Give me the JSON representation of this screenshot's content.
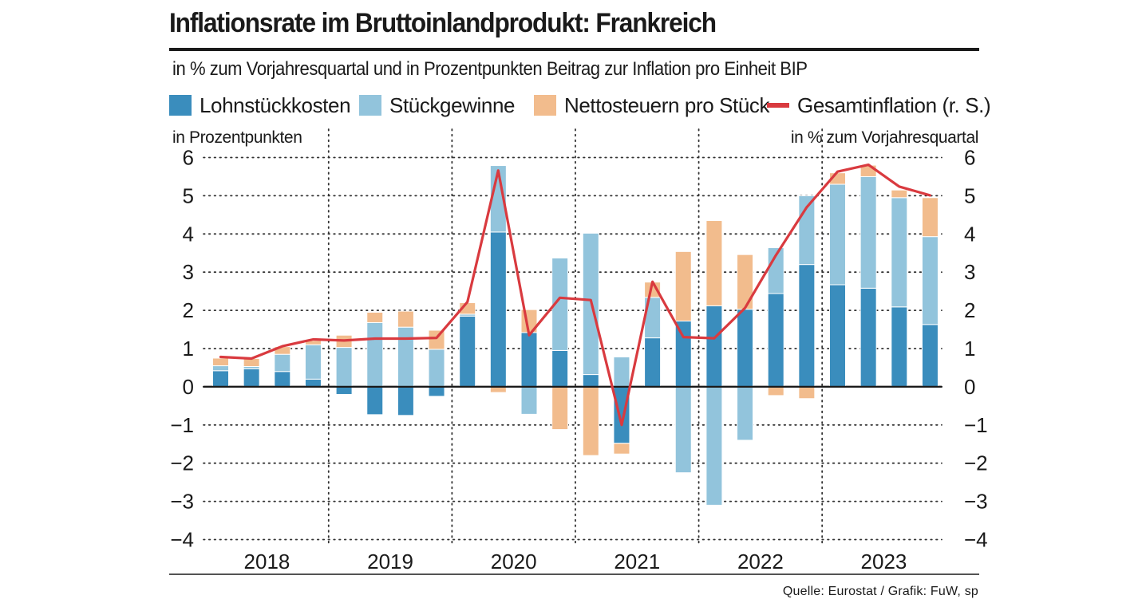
{
  "title": "Inflationsrate im Bruttoinlandprodukt: Frankreich",
  "subtitle": "in % zum Vorjahresquartal und in Prozentpunkten Beitrag zur Inflation pro Einheit BIP",
  "source": "Quelle: Eurostat / Grafik: FuW, sp",
  "colors": {
    "lohn": "#3a8dbd",
    "gewinne": "#92c4dc",
    "steuern": "#f2bc8d",
    "line": "#d93a3f",
    "text": "#1a1a1a",
    "grid": "#333333"
  },
  "chart_data": {
    "type": "bar",
    "stacked": true,
    "left_axis_label": "in Prozentpunkten",
    "right_axis_label": "in % zum Vorjahresquartal",
    "ylim": [
      -4,
      6
    ],
    "yticks": [
      6,
      5,
      4,
      3,
      2,
      1,
      0,
      -1,
      -2,
      -3,
      -4
    ],
    "ytick_labels": [
      "6",
      "5",
      "4",
      "3",
      "2",
      "1",
      "0",
      "−1",
      "−2",
      "−3",
      "−4"
    ],
    "years": [
      "2018",
      "2019",
      "2020",
      "2021",
      "2022",
      "2023"
    ],
    "quarters": [
      "2018Q1",
      "2018Q2",
      "2018Q3",
      "2018Q4",
      "2019Q1",
      "2019Q2",
      "2019Q3",
      "2019Q4",
      "2020Q1",
      "2020Q2",
      "2020Q3",
      "2020Q4",
      "2021Q1",
      "2021Q2",
      "2021Q3",
      "2021Q4",
      "2022Q1",
      "2022Q2",
      "2022Q3",
      "2022Q4",
      "2023Q1",
      "2023Q2",
      "2023Q3",
      "2023Q4"
    ],
    "series": [
      {
        "name": "Lohnstückkosten",
        "kind": "bar",
        "values": [
          0.42,
          0.47,
          0.4,
          0.2,
          -0.2,
          -0.73,
          -0.75,
          -0.25,
          1.85,
          4.05,
          1.42,
          0.95,
          0.32,
          -1.48,
          1.28,
          1.72,
          2.12,
          2.03,
          2.44,
          3.2,
          2.67,
          2.58,
          2.09,
          1.63
        ]
      },
      {
        "name": "Stückgewinne",
        "kind": "bar",
        "values": [
          0.13,
          0.06,
          0.45,
          0.9,
          1.03,
          1.68,
          1.56,
          0.98,
          0.05,
          1.74,
          -0.72,
          2.42,
          3.7,
          0.78,
          1.06,
          -2.25,
          -3.1,
          -1.4,
          1.2,
          1.8,
          2.63,
          2.92,
          2.86,
          2.3
        ]
      },
      {
        "name": "Nettosteuern pro Stück",
        "kind": "bar",
        "values": [
          0.2,
          0.21,
          0.2,
          0.11,
          0.32,
          0.27,
          0.42,
          0.5,
          0.3,
          -0.15,
          0.6,
          -1.12,
          -1.8,
          -0.28,
          0.4,
          1.82,
          2.23,
          1.43,
          -0.23,
          -0.31,
          0.3,
          0.3,
          0.2,
          1.02
        ]
      },
      {
        "name": "Gesamtinflation (r. S.)",
        "kind": "line",
        "axis": "right",
        "values": [
          0.78,
          0.74,
          1.06,
          1.24,
          1.21,
          1.26,
          1.26,
          1.28,
          2.22,
          5.66,
          1.35,
          2.33,
          2.27,
          -1.0,
          2.75,
          1.3,
          1.27,
          2.06,
          3.44,
          4.7,
          5.63,
          5.81,
          5.24,
          5.01
        ]
      }
    ]
  }
}
